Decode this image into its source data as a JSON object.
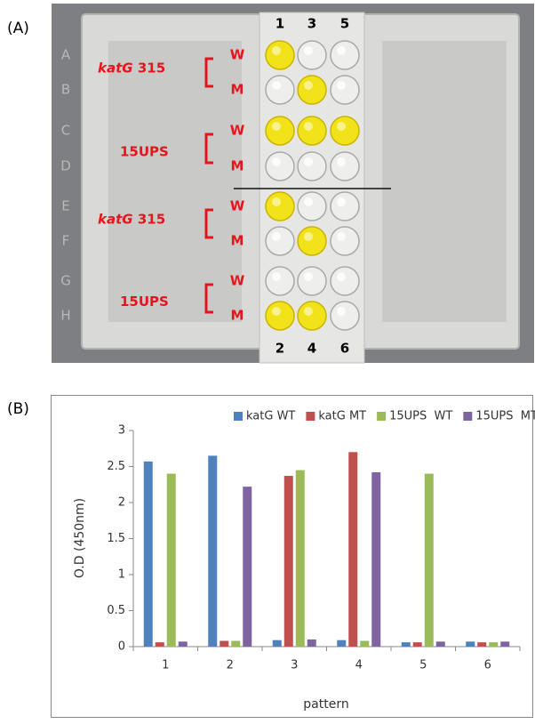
{
  "panel_labels": [
    "(A)",
    "(B)"
  ],
  "plate": {
    "row_letters": [
      "A",
      "B",
      "C",
      "D",
      "E",
      "F",
      "G",
      "H"
    ],
    "column_labels_top": [
      "1",
      "3",
      "5"
    ],
    "column_labels_bottom": [
      "2",
      "4",
      "6"
    ],
    "groups": [
      {
        "gene": "katG",
        "site": "315",
        "rows": [
          "W",
          "M"
        ]
      },
      {
        "name": "15UPS",
        "rows": [
          "W",
          "M"
        ]
      },
      {
        "gene": "katG",
        "site": "315",
        "rows": [
          "W",
          "M"
        ]
      },
      {
        "name": "15UPS",
        "rows": [
          "W",
          "M"
        ]
      }
    ]
  },
  "chart_data": {
    "type": "bar",
    "x_label": "pattern",
    "y_label": "O.D (450nm)",
    "categories": [
      "1",
      "2",
      "3",
      "4",
      "5",
      "6"
    ],
    "series": [
      {
        "name": "katG WT",
        "color": "#4f81bd",
        "values": [
          2.57,
          2.65,
          0.09,
          0.09,
          0.06,
          0.07
        ]
      },
      {
        "name": "katG MT",
        "color": "#c0504d",
        "values": [
          0.06,
          0.08,
          2.37,
          2.7,
          0.06,
          0.06
        ]
      },
      {
        "name": "15UPS  WT",
        "color": "#9bbb59",
        "values": [
          2.4,
          0.08,
          2.45,
          0.08,
          2.4,
          0.06
        ]
      },
      {
        "name": "15UPS  MT",
        "color": "#8064a2",
        "values": [
          0.07,
          2.22,
          0.1,
          2.42,
          0.07,
          0.07
        ]
      }
    ],
    "ylim": [
      0,
      3
    ],
    "yticks": [
      0,
      0.5,
      1,
      1.5,
      2,
      2.5,
      3
    ],
    "grid": false,
    "legend": "top"
  }
}
